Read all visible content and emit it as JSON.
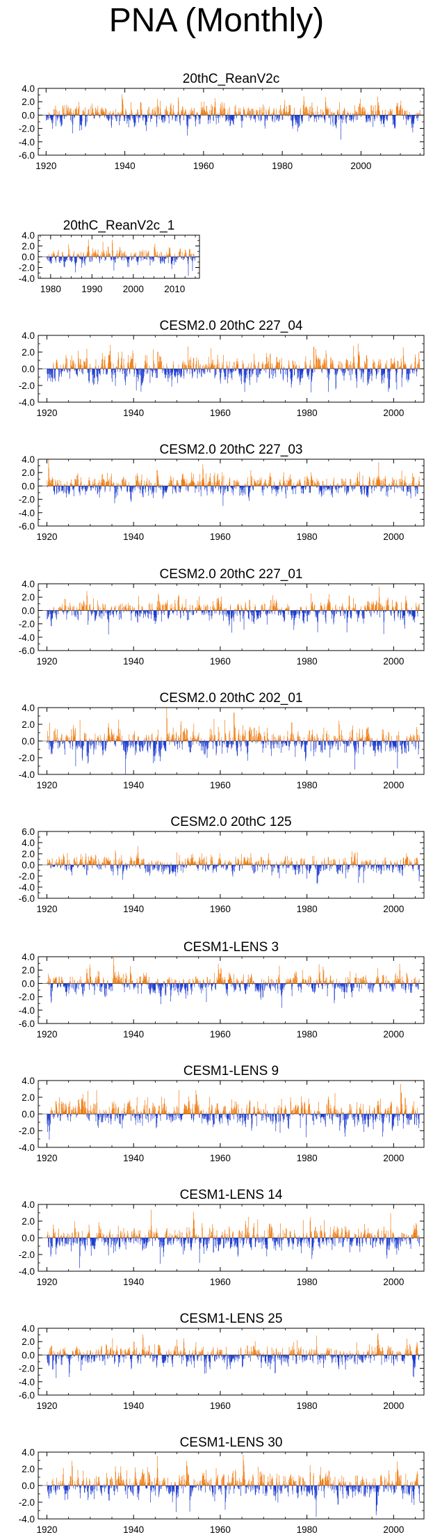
{
  "figure": {
    "title": "PNA (Monthly)",
    "colors": {
      "positive": "#f07d14",
      "negative": "#1e3cd2",
      "axis": "#000000"
    }
  },
  "chart_data": [
    {
      "type": "bar",
      "title": "20thC_ReanV2c",
      "x_range": [
        1920,
        2014
      ],
      "xlim": [
        1918,
        2016
      ],
      "xticks": [
        1920,
        1940,
        1960,
        1980,
        2000
      ],
      "ylim": [
        -6,
        4
      ],
      "yticks": [
        4,
        2,
        0,
        -2,
        -4,
        -6
      ],
      "ytick_labels": [
        "4.0",
        "2.0",
        "0.0",
        "-2.0",
        "-4.0",
        "-6.0"
      ],
      "seed": 11
    },
    {
      "type": "bar",
      "title": "20thC_ReanV2c_1",
      "x_range": [
        1979,
        2014
      ],
      "xlim": [
        1977,
        2016
      ],
      "xticks": [
        1980,
        1990,
        2000,
        2010
      ],
      "ylim": [
        -4,
        4
      ],
      "yticks": [
        4,
        2,
        0,
        -2,
        -4
      ],
      "ytick_labels": [
        "4.0",
        "2.0",
        "0.0",
        "-2.0",
        "-4.0"
      ],
      "seed": 23
    },
    {
      "type": "bar",
      "title": "CESM2.0 20thC 227_04",
      "x_range": [
        1920,
        2005
      ],
      "xlim": [
        1918,
        2007
      ],
      "xticks": [
        1920,
        1940,
        1960,
        1980,
        2000
      ],
      "ylim": [
        -4,
        4
      ],
      "yticks": [
        4,
        2,
        0,
        -2,
        -4
      ],
      "ytick_labels": [
        "4.0",
        "2.0",
        "0.0",
        "-2.0",
        "-4.0"
      ],
      "seed": 37
    },
    {
      "type": "bar",
      "title": "CESM2.0 20thC 227_03",
      "x_range": [
        1920,
        2005
      ],
      "xlim": [
        1918,
        2007
      ],
      "xticks": [
        1920,
        1940,
        1960,
        1980,
        2000
      ],
      "ylim": [
        -6,
        4
      ],
      "yticks": [
        4,
        2,
        0,
        -2,
        -4,
        -6
      ],
      "ytick_labels": [
        "4.0",
        "2.0",
        "0.0",
        "-2.0",
        "-4.0",
        "-6.0"
      ],
      "seed": 41
    },
    {
      "type": "bar",
      "title": "CESM2.0 20thC 227_01",
      "x_range": [
        1920,
        2005
      ],
      "xlim": [
        1918,
        2007
      ],
      "xticks": [
        1920,
        1940,
        1960,
        1980,
        2000
      ],
      "ylim": [
        -6,
        4
      ],
      "yticks": [
        4,
        2,
        0,
        -2,
        -4,
        -6
      ],
      "ytick_labels": [
        "4.0",
        "2.0",
        "0.0",
        "-2.0",
        "-4.0",
        "-6.0"
      ],
      "seed": 53
    },
    {
      "type": "bar",
      "title": "CESM2.0 20thC 202_01",
      "x_range": [
        1920,
        2005
      ],
      "xlim": [
        1918,
        2007
      ],
      "xticks": [
        1920,
        1940,
        1960,
        1980,
        2000
      ],
      "ylim": [
        -4,
        4
      ],
      "yticks": [
        4,
        2,
        0,
        -2,
        -4
      ],
      "ytick_labels": [
        "4.0",
        "2.0",
        "0.0",
        "-2.0",
        "-4.0"
      ],
      "seed": 67
    },
    {
      "type": "bar",
      "title": "CESM2.0 20thC 125",
      "x_range": [
        1920,
        2005
      ],
      "xlim": [
        1918,
        2007
      ],
      "xticks": [
        1920,
        1940,
        1960,
        1980,
        2000
      ],
      "ylim": [
        -6,
        6
      ],
      "yticks": [
        6,
        4,
        2,
        0,
        -2,
        -4,
        -6
      ],
      "ytick_labels": [
        "6.0",
        "4.0",
        "2.0",
        "0.0",
        "-2.0",
        "-4.0",
        "-6.0"
      ],
      "seed": 71
    },
    {
      "type": "bar",
      "title": "CESM1-LENS 3",
      "x_range": [
        1920,
        2005
      ],
      "xlim": [
        1918,
        2007
      ],
      "xticks": [
        1920,
        1940,
        1960,
        1980,
        2000
      ],
      "ylim": [
        -6,
        4
      ],
      "yticks": [
        4,
        2,
        0,
        -2,
        -4,
        -6
      ],
      "ytick_labels": [
        "4.0",
        "2.0",
        "0.0",
        "-2.0",
        "-4.0",
        "-6.0"
      ],
      "seed": 83
    },
    {
      "type": "bar",
      "title": "CESM1-LENS 9",
      "x_range": [
        1920,
        2005
      ],
      "xlim": [
        1918,
        2007
      ],
      "xticks": [
        1920,
        1940,
        1960,
        1980,
        2000
      ],
      "ylim": [
        -4,
        4
      ],
      "yticks": [
        4,
        2,
        0,
        -2,
        -4
      ],
      "ytick_labels": [
        "4.0",
        "2.0",
        "0.0",
        "-2.0",
        "-4.0"
      ],
      "seed": 97
    },
    {
      "type": "bar",
      "title": "CESM1-LENS 14",
      "x_range": [
        1920,
        2005
      ],
      "xlim": [
        1918,
        2007
      ],
      "xticks": [
        1920,
        1940,
        1960,
        1980,
        2000
      ],
      "ylim": [
        -4,
        4
      ],
      "yticks": [
        4,
        2,
        0,
        -2,
        -4
      ],
      "ytick_labels": [
        "4.0",
        "2.0",
        "0.0",
        "-2.0",
        "-4.0"
      ],
      "seed": 101
    },
    {
      "type": "bar",
      "title": "CESM1-LENS 25",
      "x_range": [
        1920,
        2005
      ],
      "xlim": [
        1918,
        2007
      ],
      "xticks": [
        1920,
        1940,
        1960,
        1980,
        2000
      ],
      "ylim": [
        -6,
        4
      ],
      "yticks": [
        4,
        2,
        0,
        -2,
        -4,
        -6
      ],
      "ytick_labels": [
        "4.0",
        "2.0",
        "0.0",
        "-2.0",
        "-4.0",
        "-6.0"
      ],
      "seed": 113
    },
    {
      "type": "bar",
      "title": "CESM1-LENS 30",
      "x_range": [
        1920,
        2005
      ],
      "xlim": [
        1918,
        2007
      ],
      "xticks": [
        1920,
        1940,
        1960,
        1980,
        2000
      ],
      "ylim": [
        -4,
        4
      ],
      "yticks": [
        4,
        2,
        0,
        -2,
        -4
      ],
      "ytick_labels": [
        "4.0",
        "2.0",
        "0.0",
        "-2.0",
        "-4.0"
      ],
      "seed": 127
    }
  ]
}
